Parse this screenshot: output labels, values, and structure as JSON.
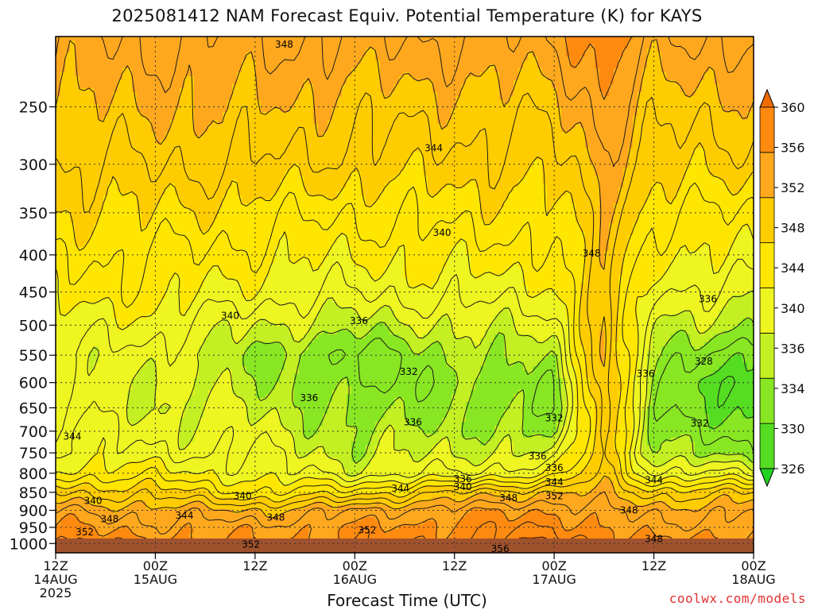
{
  "chart_data": {
    "type": "heatmap",
    "subtype": "time-height contour (filled)",
    "title": "2025081412 NAM Forecast Equiv. Potential Temperature (K) for KAYS",
    "xlabel": "Forecast Time (UTC)",
    "ylabel": "",
    "credit": "coolwx.com/models",
    "y_scale": "log",
    "y_inverted": true,
    "ylim": [
      1030,
      200
    ],
    "y_ticks": [
      250,
      300,
      350,
      400,
      450,
      500,
      550,
      600,
      650,
      700,
      750,
      800,
      850,
      900,
      950,
      1000
    ],
    "x_unit": "forecast hours",
    "xlim": [
      0,
      84
    ],
    "x_ticks": [
      {
        "hour": 0,
        "labels": [
          "12Z",
          "14AUG",
          "2025"
        ]
      },
      {
        "hour": 12,
        "labels": [
          "00Z",
          "15AUG"
        ]
      },
      {
        "hour": 24,
        "labels": [
          "12Z"
        ]
      },
      {
        "hour": 36,
        "labels": [
          "00Z",
          "16AUG"
        ]
      },
      {
        "hour": 48,
        "labels": [
          "12Z"
        ]
      },
      {
        "hour": 60,
        "labels": [
          "00Z",
          "17AUG"
        ]
      },
      {
        "hour": 72,
        "labels": [
          "12Z"
        ]
      },
      {
        "hour": 84,
        "labels": [
          "00Z",
          "18AUG"
        ]
      }
    ],
    "grid": true,
    "colorbar": {
      "position": "right",
      "levels": [
        326,
        330,
        334,
        336,
        340,
        344,
        348,
        352,
        356,
        360
      ],
      "colors": [
        "#22d322",
        "#55dd22",
        "#88e622",
        "#c4ef22",
        "#eef520",
        "#ffe600",
        "#ffcc00",
        "#ffa81e",
        "#ff8a10",
        "#ef6a00"
      ]
    },
    "profile_levels": [
      1000,
      950,
      900,
      850,
      800,
      750,
      700,
      650,
      600,
      550,
      500,
      450,
      400,
      350,
      300,
      250,
      200
    ],
    "profile_times": [
      0,
      12,
      24,
      36,
      48,
      60,
      66,
      72,
      84
    ],
    "theta_e": [
      [
        354,
        352,
        350,
        346,
        341,
        339,
        339,
        338,
        338,
        338,
        339,
        341,
        342,
        344,
        346,
        348,
        350
      ],
      [
        353,
        351,
        349,
        345,
        341,
        338,
        337,
        336,
        336,
        337,
        339,
        341,
        342,
        344,
        346,
        348,
        350
      ],
      [
        352,
        351,
        348,
        342,
        339,
        338,
        337,
        336,
        335,
        334,
        336,
        339,
        341,
        343,
        346,
        348,
        350
      ],
      [
        353,
        352,
        350,
        343,
        337,
        335,
        334,
        333,
        332,
        331,
        335,
        338,
        340,
        342,
        345,
        347,
        350
      ],
      [
        354,
        353,
        351,
        346,
        338,
        336,
        335,
        334,
        333,
        334,
        336,
        339,
        341,
        343,
        345,
        347,
        350
      ],
      [
        356,
        354,
        352,
        348,
        340,
        336,
        333,
        332,
        333,
        335,
        337,
        339,
        341,
        343,
        345,
        347,
        350
      ],
      [
        354,
        352,
        350,
        348,
        347,
        347,
        348,
        348,
        348,
        348,
        348,
        348,
        348,
        348,
        349,
        351,
        354
      ],
      [
        352,
        350,
        349,
        345,
        338,
        334,
        333,
        332,
        333,
        335,
        336,
        338,
        340,
        342,
        345,
        347,
        350
      ],
      [
        354,
        352,
        350,
        346,
        338,
        333,
        331,
        329,
        327,
        329,
        334,
        337,
        340,
        342,
        345,
        347,
        350
      ]
    ],
    "contour_labels": [
      {
        "text": "348",
        "hour": 27.5,
        "p": 205
      },
      {
        "text": "344",
        "hour": 45.5,
        "p": 285
      },
      {
        "text": "340",
        "hour": 46.5,
        "p": 373
      },
      {
        "text": "348",
        "hour": 64.5,
        "p": 398
      },
      {
        "text": "336",
        "hour": 78.5,
        "p": 460
      },
      {
        "text": "340",
        "hour": 21.0,
        "p": 485
      },
      {
        "text": "336",
        "hour": 36.5,
        "p": 493
      },
      {
        "text": "328",
        "hour": 78.0,
        "p": 561
      },
      {
        "text": "332",
        "hour": 42.5,
        "p": 580
      },
      {
        "text": "336",
        "hour": 71.0,
        "p": 583
      },
      {
        "text": "336",
        "hour": 30.5,
        "p": 630
      },
      {
        "text": "336",
        "hour": 43.0,
        "p": 680
      },
      {
        "text": "332",
        "hour": 60.0,
        "p": 672
      },
      {
        "text": "332",
        "hour": 77.5,
        "p": 683
      },
      {
        "text": "344",
        "hour": 2.0,
        "p": 712
      },
      {
        "text": "336",
        "hour": 58.0,
        "p": 758
      },
      {
        "text": "336",
        "hour": 60.0,
        "p": 786
      },
      {
        "text": "336",
        "hour": 49.0,
        "p": 815
      },
      {
        "text": "340",
        "hour": 49.0,
        "p": 835
      },
      {
        "text": "344",
        "hour": 41.5,
        "p": 840
      },
      {
        "text": "344",
        "hour": 60.0,
        "p": 823
      },
      {
        "text": "352",
        "hour": 60.0,
        "p": 860
      },
      {
        "text": "344",
        "hour": 72.0,
        "p": 818
      },
      {
        "text": "340",
        "hour": 4.5,
        "p": 873
      },
      {
        "text": "340",
        "hour": 22.5,
        "p": 860
      },
      {
        "text": "348",
        "hour": 54.5,
        "p": 866
      },
      {
        "text": "344",
        "hour": 15.5,
        "p": 915
      },
      {
        "text": "348",
        "hour": 6.5,
        "p": 925
      },
      {
        "text": "348",
        "hour": 26.5,
        "p": 921
      },
      {
        "text": "348",
        "hour": 69.0,
        "p": 900
      },
      {
        "text": "352",
        "hour": 3.5,
        "p": 965
      },
      {
        "text": "352",
        "hour": 37.5,
        "p": 958
      },
      {
        "text": "348",
        "hour": 72.0,
        "p": 985
      },
      {
        "text": "352",
        "hour": 23.5,
        "p": 1003
      },
      {
        "text": "356",
        "hour": 53.5,
        "p": 1017
      }
    ]
  }
}
